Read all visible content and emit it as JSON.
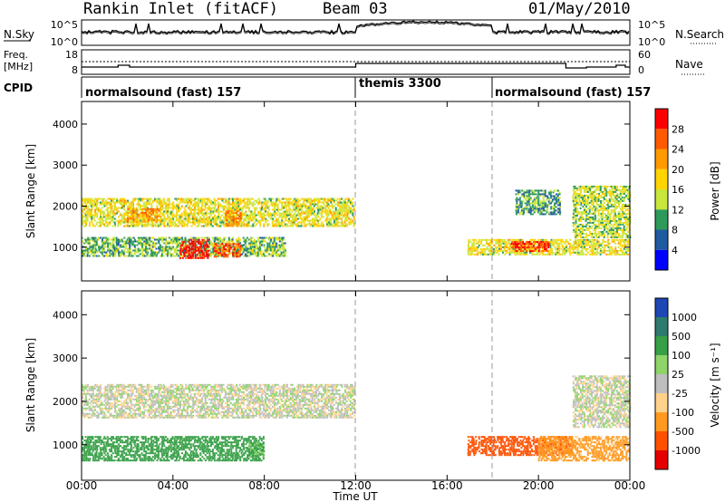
{
  "header": {
    "station": "Rankin Inlet (fitACF)",
    "beam": "Beam 03",
    "date": "01/May/2010"
  },
  "noise_panel": {
    "left_label": "N.Sky",
    "right_label": "N.Search",
    "left_ticks": [
      "10^5",
      "10^0"
    ],
    "right_ticks": [
      "10^5",
      "10^0"
    ]
  },
  "freq_panel": {
    "left_label_1": "Freq.",
    "left_label_2": "[MHz]",
    "right_label": "Nave",
    "left_ticks": [
      "18",
      "8"
    ],
    "right_ticks": [
      "60",
      "0"
    ]
  },
  "cpid": {
    "label": "CPID",
    "segments": [
      {
        "label": "normalsound (fast) 157",
        "start": "00:00",
        "end": "12:00"
      },
      {
        "label": "themis 3300",
        "start": "12:00",
        "end": "18:00"
      },
      {
        "label": "normalsound (fast) 157",
        "start": "18:00",
        "end": "24:00"
      }
    ]
  },
  "power_panel": {
    "ylabel": "Slant Range [km]",
    "colorbar_label": "Power [dB]",
    "colorbar_ticks": [
      "28",
      "24",
      "20",
      "16",
      "12",
      "8",
      "4"
    ],
    "colorbar_colors": [
      "#ff0000",
      "#ff5a00",
      "#ff9a00",
      "#ffd400",
      "#c8e63c",
      "#2e9a5a",
      "#205aa0",
      "#0000ff"
    ]
  },
  "velocity_panel": {
    "ylabel": "Slant Range [km]",
    "colorbar_label": "Velocity [m s⁻¹]",
    "colorbar_ticks": [
      "1000",
      "500",
      "100",
      "25",
      "-25",
      "-100",
      "-500",
      "-1000"
    ],
    "colorbar_colors": [
      "#1e46b4",
      "#2e7a6e",
      "#37a046",
      "#8ed46a",
      "#bebebe",
      "#ffd28c",
      "#ff9a20",
      "#ff5000",
      "#e60000"
    ]
  },
  "time_axis": {
    "label": "Time UT",
    "ticks": [
      "00:00",
      "04:00",
      "08:00",
      "12:00",
      "16:00",
      "20:00",
      "00:00"
    ]
  },
  "chart_data": {
    "type": "heatmap",
    "title": "Rankin Inlet (fitACF)  Beam 03  01/May/2010",
    "xlabel": "Time UT",
    "ylabel": "Slant Range [km]",
    "xlim_hours": [
      0,
      24
    ],
    "ylim_km": [
      180,
      4550
    ],
    "y_ticks": [
      1000,
      2000,
      3000,
      4000
    ],
    "x_ticks_hours": [
      0,
      4,
      8,
      12,
      16,
      20,
      24
    ],
    "mode_change_hours": [
      12,
      18
    ],
    "power_echo_regions": [
      {
        "t0": 0.0,
        "t1": 12.0,
        "r0": 1500,
        "r1": 2200,
        "db": 14
      },
      {
        "t0": 0.0,
        "t1": 9.0,
        "r0": 750,
        "r1": 1250,
        "db": 10
      },
      {
        "t0": 4.3,
        "t1": 5.6,
        "r0": 700,
        "r1": 1200,
        "db": 28
      },
      {
        "t0": 5.8,
        "t1": 7.0,
        "r0": 750,
        "r1": 1100,
        "db": 24
      },
      {
        "t0": 6.3,
        "t1": 7.0,
        "r0": 1500,
        "r1": 1900,
        "db": 22
      },
      {
        "t0": 2.0,
        "t1": 3.5,
        "r0": 1600,
        "r1": 1950,
        "db": 20
      },
      {
        "t0": 16.9,
        "t1": 24.0,
        "r0": 800,
        "r1": 1200,
        "db": 14
      },
      {
        "t0": 18.8,
        "t1": 20.5,
        "r0": 900,
        "r1": 1150,
        "db": 26
      },
      {
        "t0": 21.5,
        "t1": 24.0,
        "r0": 1200,
        "r1": 2500,
        "db": 12
      },
      {
        "t0": 19.0,
        "t1": 21.0,
        "r0": 1800,
        "r1": 2400,
        "db": 8
      }
    ],
    "velocity_echo_regions": [
      {
        "t0": 0.0,
        "t1": 12.0,
        "r0": 1600,
        "r1": 2400,
        "v": 0
      },
      {
        "t0": 0.0,
        "t1": 8.0,
        "r0": 600,
        "r1": 1200,
        "v": 300
      },
      {
        "t0": 7.3,
        "t1": 8.0,
        "r0": 700,
        "r1": 1050,
        "v": 100
      },
      {
        "t0": 16.9,
        "t1": 21.5,
        "r0": 750,
        "r1": 1200,
        "v": -600
      },
      {
        "t0": 20.0,
        "t1": 24.0,
        "r0": 600,
        "r1": 1200,
        "v": -150
      },
      {
        "t0": 21.5,
        "t1": 24.0,
        "r0": 1400,
        "r1": 2600,
        "v": 0
      }
    ]
  }
}
